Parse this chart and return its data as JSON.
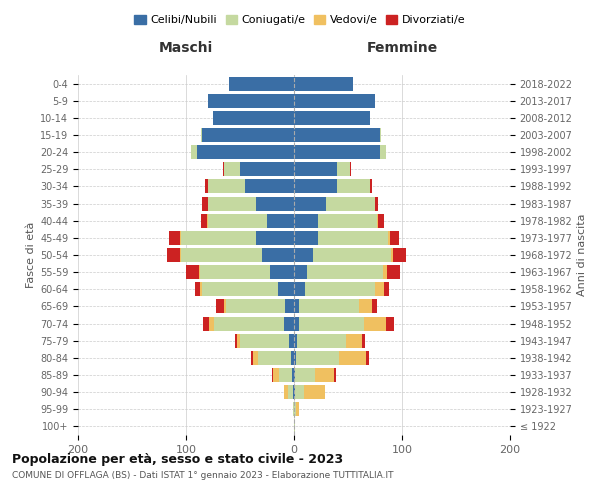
{
  "age_groups": [
    "100+",
    "95-99",
    "90-94",
    "85-89",
    "80-84",
    "75-79",
    "70-74",
    "65-69",
    "60-64",
    "55-59",
    "50-54",
    "45-49",
    "40-44",
    "35-39",
    "30-34",
    "25-29",
    "20-24",
    "15-19",
    "10-14",
    "5-9",
    "0-4"
  ],
  "birth_years": [
    "≤ 1922",
    "1923-1927",
    "1928-1932",
    "1933-1937",
    "1938-1942",
    "1943-1947",
    "1948-1952",
    "1953-1957",
    "1958-1962",
    "1963-1967",
    "1968-1972",
    "1973-1977",
    "1978-1982",
    "1983-1987",
    "1988-1992",
    "1993-1997",
    "1998-2002",
    "2003-2007",
    "2008-2012",
    "2013-2017",
    "2018-2022"
  ],
  "maschi": {
    "celibi": [
      0,
      0,
      1,
      2,
      3,
      5,
      9,
      8,
      15,
      22,
      30,
      35,
      25,
      35,
      45,
      50,
      90,
      85,
      75,
      80,
      60
    ],
    "coniugati": [
      0,
      1,
      5,
      12,
      30,
      45,
      65,
      55,
      70,
      65,
      75,
      70,
      55,
      45,
      35,
      15,
      5,
      1,
      0,
      0,
      0
    ],
    "vedovi": [
      0,
      0,
      3,
      5,
      5,
      3,
      5,
      2,
      2,
      1,
      1,
      1,
      1,
      0,
      0,
      0,
      0,
      0,
      0,
      0,
      0
    ],
    "divorziati": [
      0,
      0,
      0,
      1,
      2,
      2,
      5,
      7,
      5,
      12,
      12,
      10,
      5,
      5,
      2,
      1,
      0,
      0,
      0,
      0,
      0
    ]
  },
  "femmine": {
    "nubili": [
      0,
      0,
      1,
      1,
      2,
      3,
      5,
      5,
      10,
      12,
      18,
      22,
      22,
      30,
      40,
      40,
      80,
      80,
      70,
      75,
      55
    ],
    "coniugate": [
      1,
      2,
      8,
      18,
      40,
      45,
      60,
      55,
      65,
      70,
      72,
      65,
      55,
      45,
      30,
      12,
      5,
      1,
      0,
      0,
      0
    ],
    "vedove": [
      0,
      3,
      20,
      18,
      25,
      15,
      20,
      12,
      8,
      4,
      2,
      2,
      1,
      0,
      0,
      0,
      0,
      0,
      0,
      0,
      0
    ],
    "divorziate": [
      0,
      0,
      0,
      2,
      2,
      3,
      8,
      5,
      5,
      12,
      12,
      8,
      5,
      3,
      2,
      1,
      0,
      0,
      0,
      0,
      0
    ]
  },
  "colors": {
    "celibi_nubili": "#3a6ea5",
    "coniugati": "#c5d9a0",
    "vedovi": "#f0c060",
    "divorziati": "#cc2222"
  },
  "legend_labels": [
    "Celibi/Nubili",
    "Coniugati/e",
    "Vedovi/e",
    "Divorziati/e"
  ],
  "xlabel_left": "Maschi",
  "xlabel_right": "Femmine",
  "ylabel_left": "Fasce di età",
  "ylabel_right": "Anni di nascita",
  "title": "Popolazione per età, sesso e stato civile - 2023",
  "subtitle": "COMUNE DI OFFLAGA (BS) - Dati ISTAT 1° gennaio 2023 - Elaborazione TUTTITALIA.IT",
  "xlim": 200,
  "background_color": "#ffffff"
}
